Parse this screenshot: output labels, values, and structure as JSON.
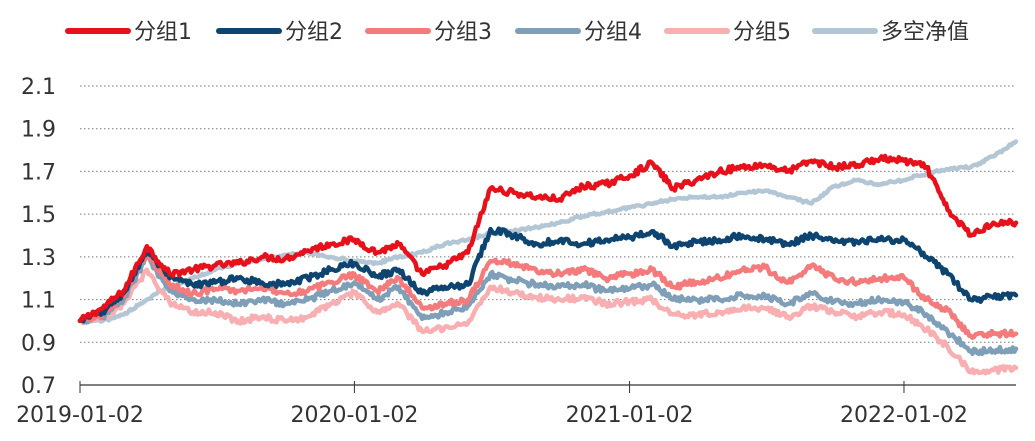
{
  "chart_data": {
    "type": "line",
    "title": "",
    "xlabel": "",
    "ylabel": "",
    "ylim": [
      0.7,
      2.1
    ],
    "yticks": [
      "2.1",
      "1.9",
      "1.7",
      "1.5",
      "1.3",
      "1.1",
      "0.9",
      "0.7"
    ],
    "xlim": [
      "2019-01-02",
      "2022-05-31"
    ],
    "xticks": [
      "2019-01-02",
      "2020-01-02",
      "2021-01-02",
      "2022-01-02"
    ],
    "grid": "horizontal-dotted",
    "legend_position": "top",
    "x": [
      "2019-01-02",
      "2019-02-01",
      "2019-03-01",
      "2019-04-01",
      "2019-05-01",
      "2019-06-01",
      "2019-07-01",
      "2019-08-01",
      "2019-09-01",
      "2019-10-01",
      "2019-11-01",
      "2019-12-01",
      "2020-01-02",
      "2020-02-01",
      "2020-03-01",
      "2020-04-01",
      "2020-05-01",
      "2020-06-01",
      "2020-07-01",
      "2020-08-01",
      "2020-09-01",
      "2020-10-01",
      "2020-11-01",
      "2020-12-01",
      "2021-01-02",
      "2021-02-01",
      "2021-03-01",
      "2021-04-01",
      "2021-05-01",
      "2021-06-01",
      "2021-07-01",
      "2021-08-01",
      "2021-09-01",
      "2021-10-01",
      "2021-11-01",
      "2021-12-01",
      "2022-01-02",
      "2022-02-01",
      "2022-03-01",
      "2022-04-01",
      "2022-05-01",
      "2022-05-31"
    ],
    "series": [
      {
        "name": "分组1",
        "color": "#e8101a",
        "values": [
          1.0,
          1.06,
          1.14,
          1.35,
          1.22,
          1.24,
          1.26,
          1.27,
          1.3,
          1.29,
          1.33,
          1.36,
          1.38,
          1.32,
          1.36,
          1.22,
          1.26,
          1.32,
          1.62,
          1.6,
          1.58,
          1.57,
          1.63,
          1.64,
          1.68,
          1.74,
          1.62,
          1.66,
          1.7,
          1.72,
          1.73,
          1.7,
          1.75,
          1.72,
          1.73,
          1.76,
          1.75,
          1.72,
          1.52,
          1.4,
          1.46,
          1.46
        ]
      },
      {
        "name": "分组2",
        "color": "#0e4570",
        "values": [
          1.0,
          1.04,
          1.13,
          1.33,
          1.2,
          1.17,
          1.18,
          1.2,
          1.18,
          1.17,
          1.2,
          1.24,
          1.27,
          1.21,
          1.24,
          1.13,
          1.16,
          1.17,
          1.43,
          1.4,
          1.36,
          1.38,
          1.36,
          1.38,
          1.39,
          1.42,
          1.35,
          1.37,
          1.38,
          1.4,
          1.38,
          1.36,
          1.4,
          1.37,
          1.37,
          1.38,
          1.38,
          1.3,
          1.22,
          1.1,
          1.11,
          1.12
        ]
      },
      {
        "name": "分组3",
        "color": "#f47a7c",
        "values": [
          1.0,
          1.03,
          1.12,
          1.32,
          1.17,
          1.13,
          1.15,
          1.14,
          1.16,
          1.13,
          1.14,
          1.18,
          1.22,
          1.14,
          1.2,
          1.06,
          1.08,
          1.1,
          1.28,
          1.27,
          1.23,
          1.22,
          1.24,
          1.2,
          1.22,
          1.24,
          1.16,
          1.18,
          1.2,
          1.24,
          1.25,
          1.18,
          1.26,
          1.2,
          1.18,
          1.2,
          1.2,
          1.1,
          1.05,
          0.93,
          0.94,
          0.94
        ]
      },
      {
        "name": "分组4",
        "color": "#7f9fb8",
        "values": [
          1.0,
          1.02,
          1.1,
          1.3,
          1.14,
          1.1,
          1.1,
          1.08,
          1.1,
          1.08,
          1.1,
          1.14,
          1.18,
          1.1,
          1.16,
          1.01,
          1.04,
          1.07,
          1.22,
          1.19,
          1.17,
          1.16,
          1.17,
          1.14,
          1.15,
          1.17,
          1.1,
          1.1,
          1.1,
          1.12,
          1.12,
          1.08,
          1.13,
          1.09,
          1.08,
          1.1,
          1.09,
          1.03,
          0.95,
          0.86,
          0.86,
          0.87
        ]
      },
      {
        "name": "分组5",
        "color": "#f9aeb2",
        "values": [
          1.0,
          1.01,
          1.08,
          1.24,
          1.09,
          1.04,
          1.04,
          1.0,
          1.02,
          1.0,
          1.02,
          1.08,
          1.13,
          1.04,
          1.08,
          0.95,
          0.97,
          0.99,
          1.16,
          1.13,
          1.11,
          1.1,
          1.11,
          1.08,
          1.09,
          1.1,
          1.03,
          1.03,
          1.04,
          1.06,
          1.06,
          1.02,
          1.07,
          1.04,
          1.02,
          1.04,
          1.03,
          0.96,
          0.88,
          0.76,
          0.77,
          0.78
        ]
      },
      {
        "name": "多空净值",
        "color": "#b3c6d6",
        "values": [
          1.0,
          1.0,
          1.03,
          1.1,
          1.16,
          1.2,
          1.24,
          1.27,
          1.29,
          1.31,
          1.32,
          1.3,
          1.28,
          1.27,
          1.3,
          1.32,
          1.36,
          1.38,
          1.41,
          1.42,
          1.44,
          1.46,
          1.49,
          1.51,
          1.53,
          1.55,
          1.57,
          1.58,
          1.58,
          1.6,
          1.61,
          1.58,
          1.55,
          1.63,
          1.66,
          1.64,
          1.66,
          1.69,
          1.71,
          1.72,
          1.77,
          1.84
        ]
      }
    ]
  }
}
